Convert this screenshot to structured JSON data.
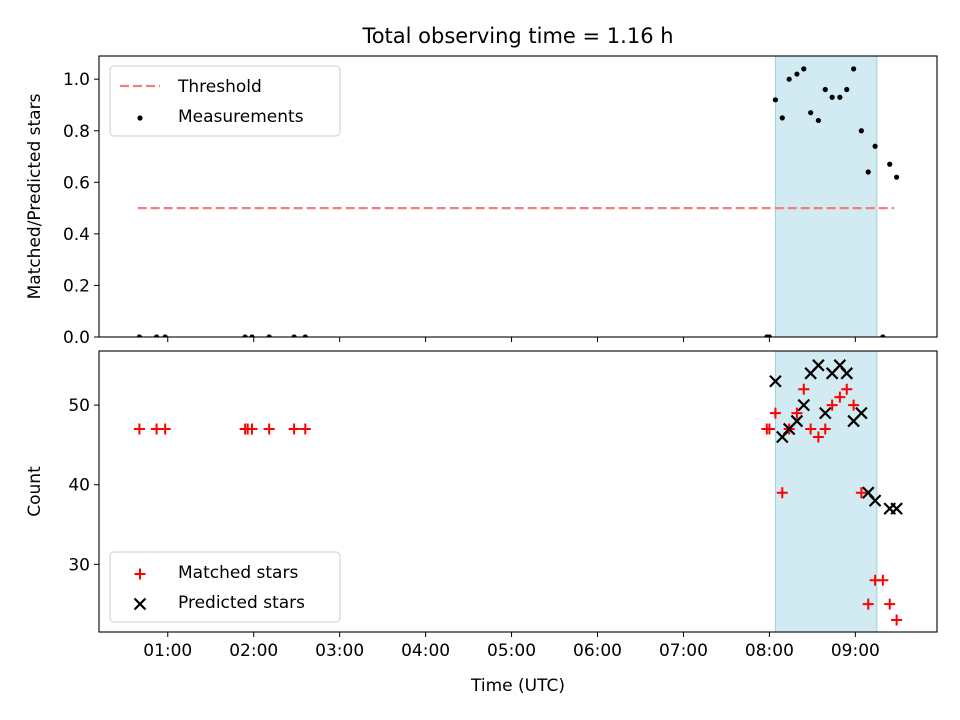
{
  "chart_data": {
    "title": "Total observing time = 1.16 h",
    "xlabel": "Time (UTC)",
    "xlim": [
      0.2,
      9.95
    ],
    "xticks": [
      1,
      2,
      3,
      4,
      5,
      6,
      7,
      8,
      9
    ],
    "xtick_labels": [
      "01:00",
      "02:00",
      "03:00",
      "04:00",
      "05:00",
      "06:00",
      "07:00",
      "08:00",
      "09:00"
    ],
    "highlight_span": {
      "x_start": 8.07,
      "x_end": 9.25,
      "color": "#add8e6"
    },
    "panels": [
      {
        "type": "scatter",
        "ylabel": "Matched/Predicted stars",
        "ylim": [
          0,
          1.09
        ],
        "yticks": [
          0.0,
          0.2,
          0.4,
          0.6,
          0.8,
          1.0
        ],
        "ytick_labels": [
          "0.0",
          "0.2",
          "0.4",
          "0.6",
          "0.8",
          "1.0"
        ],
        "legend_position": "upper-left",
        "threshold": {
          "name": "Threshold",
          "value": 0.5,
          "x_start": 0.65,
          "x_end": 9.45,
          "color": "#f08080"
        },
        "series": [
          {
            "name": "Measurements",
            "marker": "dot",
            "color": "#000000",
            "x": [
              0.67,
              0.87,
              0.97,
              1.9,
              1.98,
              2.18,
              2.47,
              2.6,
              7.97,
              8.0,
              8.07,
              8.15,
              8.23,
              8.32,
              8.4,
              8.48,
              8.57,
              8.65,
              8.73,
              8.82,
              8.9,
              8.98,
              9.07,
              9.15,
              9.23,
              9.32,
              9.4,
              9.48
            ],
            "y": [
              0,
              0,
              0,
              0,
              0,
              0,
              0,
              0,
              0,
              0,
              0.92,
              0.85,
              1.0,
              1.02,
              1.04,
              0.87,
              0.84,
              0.96,
              0.93,
              0.93,
              0.96,
              1.04,
              0.8,
              0.64,
              0.74,
              0,
              0.67,
              0.62
            ]
          }
        ]
      },
      {
        "type": "scatter",
        "ylabel": "Count",
        "ylim": [
          21.5,
          56.8
        ],
        "yticks": [
          30,
          40,
          50
        ],
        "ytick_labels": [
          "30",
          "40",
          "50"
        ],
        "legend_position": "lower-left",
        "series": [
          {
            "name": "Matched stars",
            "marker": "plus",
            "color": "#ff0000",
            "x": [
              0.67,
              0.87,
              0.97,
              1.9,
              1.93,
              1.98,
              2.18,
              2.47,
              2.6,
              7.97,
              8.0,
              8.07,
              8.15,
              8.23,
              8.32,
              8.4,
              8.48,
              8.57,
              8.65,
              8.73,
              8.82,
              8.9,
              8.98,
              9.07,
              9.15,
              9.23,
              9.32,
              9.4,
              9.48
            ],
            "y": [
              47,
              47,
              47,
              47,
              47,
              47,
              47,
              47,
              47,
              47,
              47,
              49,
              39,
              47,
              49,
              52,
              47,
              46,
              47,
              50,
              51,
              52,
              50,
              39,
              25,
              28,
              28,
              25,
              23
            ]
          },
          {
            "name": "Predicted stars",
            "marker": "x",
            "color": "#000000",
            "x": [
              8.07,
              8.15,
              8.23,
              8.32,
              8.4,
              8.48,
              8.57,
              8.65,
              8.73,
              8.82,
              8.9,
              8.98,
              9.07,
              9.15,
              9.23,
              9.4,
              9.48
            ],
            "y": [
              53,
              46,
              47,
              48,
              50,
              54,
              55,
              49,
              54,
              55,
              54,
              48,
              49,
              39,
              38,
              37,
              37
            ]
          }
        ]
      }
    ]
  }
}
